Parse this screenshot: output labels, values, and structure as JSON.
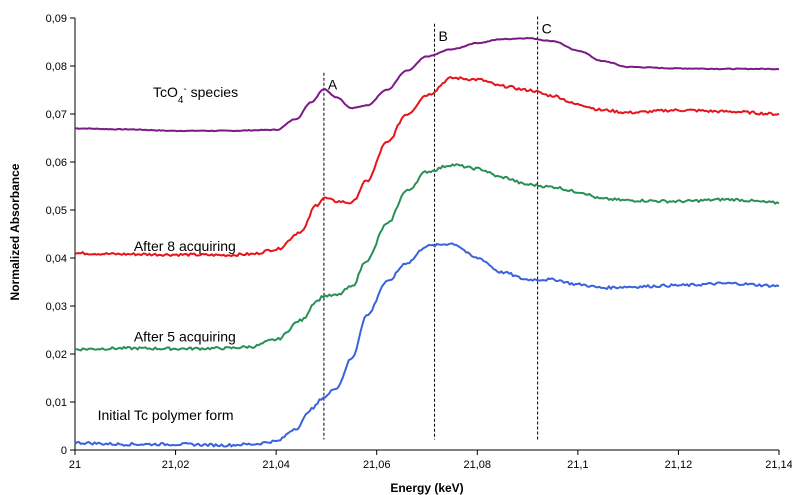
{
  "chart_data": {
    "type": "line",
    "xlabel": "Energy (keV)",
    "ylabel": "Normalized Absorbance",
    "xlim": [
      21,
      21.14
    ],
    "ylim": [
      0,
      0.09
    ],
    "x_ticks": [
      {
        "value": 21,
        "label": "21"
      },
      {
        "value": 21.02,
        "label": "21,02"
      },
      {
        "value": 21.04,
        "label": "21,04"
      },
      {
        "value": 21.06,
        "label": "21,06"
      },
      {
        "value": 21.08,
        "label": "21,08"
      },
      {
        "value": 21.1,
        "label": "21,1"
      },
      {
        "value": 21.12,
        "label": "21,12"
      },
      {
        "value": 21.14,
        "label": "21,14"
      }
    ],
    "y_ticks": [
      {
        "value": 0,
        "label": "0"
      },
      {
        "value": 0.01,
        "label": "0,01"
      },
      {
        "value": 0.02,
        "label": "0,02"
      },
      {
        "value": 0.03,
        "label": "0,03"
      },
      {
        "value": 0.04,
        "label": "0,04"
      },
      {
        "value": 0.05,
        "label": "0,05"
      },
      {
        "value": 0.06,
        "label": "0,06"
      },
      {
        "value": 0.07,
        "label": "0,07"
      },
      {
        "value": 0.08,
        "label": "0,08"
      },
      {
        "value": 0.09,
        "label": "0,09"
      }
    ],
    "grid": false,
    "legend": "none",
    "series": [
      {
        "name": "TcO4- species",
        "label_main": "TcO",
        "label_sub": "4",
        "label_sup": "-",
        "label_rest": " species",
        "label_at": [
          21.0155,
          0.0735
        ],
        "color": "#7b1a87",
        "x": [
          21,
          21.01,
          21.02,
          21.03,
          21.04,
          21.044,
          21.047,
          21.0495,
          21.052,
          21.055,
          21.058,
          21.062,
          21.066,
          21.07,
          21.075,
          21.08,
          21.085,
          21.09,
          21.095,
          21.1,
          21.105,
          21.11,
          21.12,
          21.13,
          21.14
        ],
        "y": [
          0.067,
          0.0668,
          0.0665,
          0.0665,
          0.0667,
          0.069,
          0.0725,
          0.0752,
          0.0735,
          0.0712,
          0.0718,
          0.075,
          0.079,
          0.082,
          0.0835,
          0.0848,
          0.0856,
          0.0858,
          0.0852,
          0.0832,
          0.081,
          0.0798,
          0.0795,
          0.0794,
          0.0794
        ]
      },
      {
        "name": "After 8 acquiring",
        "label_at": [
          21.0117,
          0.0415
        ],
        "color": "#e8141c",
        "x": [
          21,
          21.01,
          21.02,
          21.03,
          21.035,
          21.04,
          21.045,
          21.048,
          21.0495,
          21.052,
          21.055,
          21.058,
          21.062,
          21.066,
          21.07,
          21.075,
          21.08,
          21.085,
          21.09,
          21.095,
          21.1,
          21.105,
          21.11,
          21.12,
          21.13,
          21.14
        ],
        "y": [
          0.041,
          0.0408,
          0.0407,
          0.0406,
          0.0408,
          0.0418,
          0.0455,
          0.051,
          0.0525,
          0.0518,
          0.0515,
          0.056,
          0.064,
          0.07,
          0.074,
          0.0775,
          0.0772,
          0.0758,
          0.075,
          0.0738,
          0.072,
          0.0708,
          0.0703,
          0.0708,
          0.0705,
          0.07
        ]
      },
      {
        "name": "After 5 acquiring",
        "label_at": [
          21.0117,
          0.0226
        ],
        "color": "#2a9056",
        "x": [
          21,
          21.01,
          21.02,
          21.03,
          21.035,
          21.04,
          21.045,
          21.048,
          21.0495,
          21.052,
          21.055,
          21.058,
          21.062,
          21.066,
          21.07,
          21.075,
          21.08,
          21.085,
          21.09,
          21.095,
          21.1,
          21.105,
          21.11,
          21.12,
          21.13,
          21.14
        ],
        "y": [
          0.021,
          0.0212,
          0.0211,
          0.0212,
          0.0215,
          0.023,
          0.027,
          0.031,
          0.0321,
          0.0322,
          0.034,
          0.0395,
          0.047,
          0.054,
          0.058,
          0.0594,
          0.0586,
          0.0568,
          0.0553,
          0.0548,
          0.0538,
          0.0523,
          0.052,
          0.0518,
          0.0522,
          0.0515
        ]
      },
      {
        "name": "Initial Tc polymer form",
        "label_at": [
          21.0045,
          0.0063
        ],
        "color": "#3a62dc",
        "x": [
          21,
          21.01,
          21.02,
          21.03,
          21.035,
          21.04,
          21.044,
          21.047,
          21.0495,
          21.052,
          21.055,
          21.058,
          21.062,
          21.066,
          21.07,
          21.075,
          21.08,
          21.085,
          21.09,
          21.095,
          21.1,
          21.105,
          21.11,
          21.12,
          21.13,
          21.14
        ],
        "y": [
          0.0015,
          0.0012,
          0.0012,
          0.001,
          0.0012,
          0.0018,
          0.0045,
          0.0085,
          0.011,
          0.013,
          0.019,
          0.028,
          0.035,
          0.039,
          0.0425,
          0.043,
          0.04,
          0.037,
          0.0355,
          0.0355,
          0.0345,
          0.0338,
          0.034,
          0.0343,
          0.0347,
          0.0342
        ]
      }
    ],
    "markers": [
      {
        "label": "A",
        "x": 21.0495,
        "y_top": 0.0786
      },
      {
        "label": "B",
        "x": 21.0715,
        "y_top": 0.0888
      },
      {
        "label": "C",
        "x": 21.092,
        "y_top": 0.0903
      }
    ]
  }
}
